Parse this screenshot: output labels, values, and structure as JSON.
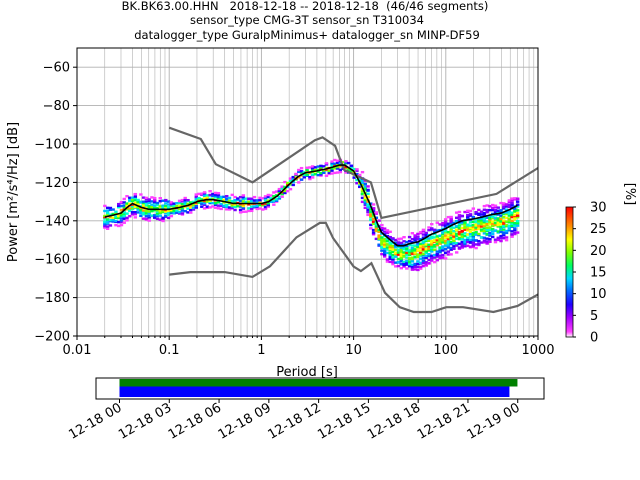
{
  "title_lines": [
    "BK.BK63.00.HHN   2018-12-18 -- 2018-12-18  (46/46 segments)",
    "sensor_type CMG-3T sensor_sn T310034",
    "datalogger_type GuralpMinimus+ datalogger_sn MINP-DF59"
  ],
  "chart_data": [
    {
      "type": "heatmap",
      "name": "ppsd",
      "xlabel": "Period [s]",
      "ylabel": "Power [m²/s⁴/Hz] [dB]",
      "x_scale": "log",
      "xlim": [
        0.01,
        1000
      ],
      "ylim": [
        -200,
        -50
      ],
      "xticks": [
        0.01,
        0.1,
        1,
        10,
        100,
        1000
      ],
      "xtick_labels": [
        "0.01",
        "0.1",
        "1",
        "10",
        "100",
        "1000"
      ],
      "yticks": [
        -200,
        -180,
        -160,
        -140,
        -120,
        -100,
        -80,
        -60
      ],
      "grid": true,
      "mean_curve": {
        "period": [
          0.02,
          0.025,
          0.03,
          0.035,
          0.04,
          0.05,
          0.06,
          0.08,
          0.1,
          0.13,
          0.16,
          0.2,
          0.25,
          0.3,
          0.4,
          0.5,
          0.6,
          0.8,
          1,
          1.2,
          1.5,
          2,
          2.5,
          3,
          4,
          5,
          6,
          7,
          8,
          10,
          12,
          15,
          18,
          20,
          25,
          30,
          35,
          40,
          50,
          60,
          70,
          80,
          100,
          120,
          150,
          200,
          250,
          300,
          400,
          500,
          600
        ],
        "power": [
          -138,
          -137,
          -136,
          -133,
          -131,
          -133,
          -134,
          -134,
          -134,
          -133,
          -132,
          -130,
          -129,
          -129,
          -130,
          -131,
          -131,
          -131,
          -131,
          -130,
          -127,
          -121,
          -117,
          -115,
          -114,
          -113,
          -112,
          -111,
          -111,
          -114,
          -121,
          -131,
          -141,
          -146,
          -150,
          -153,
          -153,
          -152,
          -151,
          -149,
          -147,
          -146,
          -144,
          -142,
          -140,
          -139,
          -138,
          -137,
          -136,
          -134,
          -132
        ]
      },
      "nhnm": {
        "period": [
          0.1,
          0.22,
          0.32,
          0.8,
          3.8,
          4.6,
          6.3,
          7.9,
          15.4,
          20,
          354.8,
          1000
        ],
        "power": [
          -91.5,
          -97.4,
          -110.5,
          -120,
          -98,
          -96.5,
          -101,
          -113.5,
          -120,
          -138.5,
          -126,
          -112.5
        ]
      },
      "nlnm": {
        "period": [
          0.1,
          0.17,
          0.4,
          0.8,
          1.24,
          2.4,
          4.3,
          5,
          6,
          10,
          12,
          15.6,
          21.9,
          31.6,
          45,
          70,
          101,
          154,
          328,
          600,
          1000
        ],
        "power": [
          -168,
          -166.7,
          -166.7,
          -169.2,
          -163.7,
          -148.6,
          -141.1,
          -141.1,
          -149,
          -163.8,
          -166.2,
          -162.1,
          -177.5,
          -185,
          -187.5,
          -187.5,
          -185,
          -185,
          -187.5,
          -184.4,
          -178.4
        ]
      },
      "colorbar": {
        "label": "[%]",
        "range": [
          0,
          30
        ],
        "ticks": [
          0,
          5,
          10,
          15,
          20,
          25,
          30
        ]
      }
    },
    {
      "type": "bar",
      "name": "data-coverage",
      "x_type": "datetime",
      "xlim": [
        "2018-12-17 22:35",
        "2018-12-19 01:35"
      ],
      "xtick_labels": [
        "12-18 00",
        "12-18 03",
        "12-18 06",
        "12-18 09",
        "12-18 12",
        "12-18 15",
        "12-18 18",
        "12-18 21",
        "12-19 00"
      ],
      "series": [
        {
          "color": "#008000",
          "start": "2018-12-18 00:00",
          "end": "2018-12-18 23:59"
        },
        {
          "color": "#0000ff",
          "start": "2018-12-18 00:00",
          "end": "2018-12-18 23:30"
        }
      ]
    }
  ],
  "colors": {
    "mean": "#000000",
    "noise_models": "#666666",
    "grid": "#b0b0b0",
    "coverage_green": "#008000",
    "coverage_blue": "#0000ff"
  }
}
